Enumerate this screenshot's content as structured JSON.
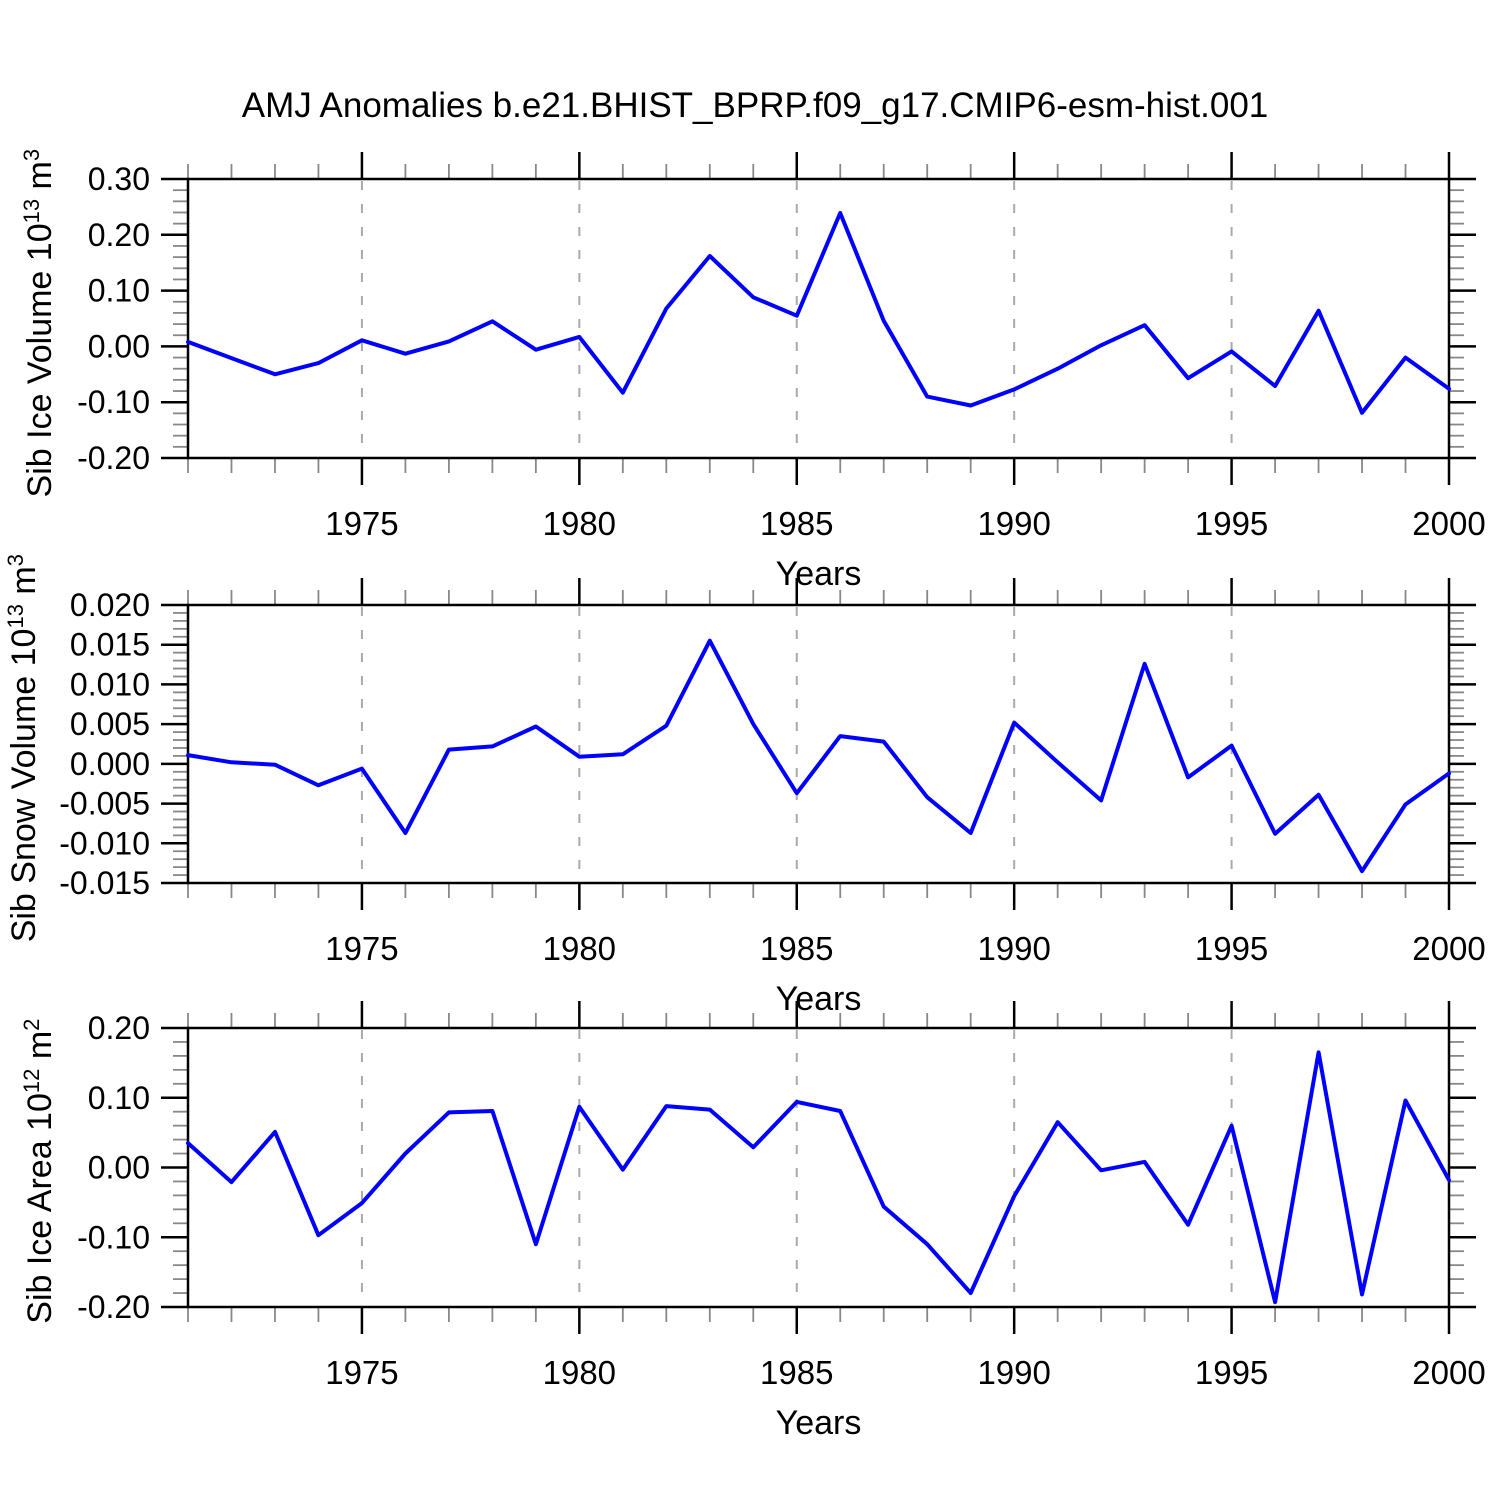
{
  "title": "AMJ Anomalies b.e21.BHIST_BPRP.f09_g17.CMIP6-esm-hist.001",
  "colors": {
    "line": "#0000ff",
    "grid": "#aaaaaa",
    "axis": "#000000",
    "minor_tick": "#888888",
    "text": "#000000"
  },
  "chart_data": [
    {
      "type": "line",
      "name": "sib-ice-volume",
      "ylabel": "Sib Ice Volume 10^13 m^3",
      "ylabel_parts": {
        "base1": "Sib Ice Volume 10",
        "sup1": "13",
        "base2": " m",
        "sup2": "3"
      },
      "xlabel": "Years",
      "x": [
        1971,
        1972,
        1973,
        1974,
        1975,
        1976,
        1977,
        1978,
        1979,
        1980,
        1981,
        1982,
        1983,
        1984,
        1985,
        1986,
        1987,
        1988,
        1989,
        1990,
        1991,
        1992,
        1993,
        1994,
        1995,
        1996,
        1997,
        1998,
        1999,
        2000
      ],
      "values": [
        0.008,
        -0.021,
        -0.05,
        -0.03,
        0.011,
        -0.013,
        0.009,
        0.045,
        -0.006,
        0.017,
        -0.083,
        0.068,
        0.162,
        0.088,
        0.055,
        0.239,
        0.046,
        -0.09,
        -0.106,
        -0.077,
        -0.04,
        0.002,
        0.038,
        -0.057,
        -0.009,
        -0.071,
        0.064,
        -0.119,
        -0.02,
        -0.076
      ],
      "ylim": [
        -0.2,
        0.3
      ],
      "xlim": [
        1971,
        2000
      ],
      "ytick_major": 0.1,
      "ytick_minor": 0.02,
      "yticks": [
        {
          "v": 0.3,
          "label": "0.30"
        },
        {
          "v": 0.2,
          "label": "0.20"
        },
        {
          "v": 0.1,
          "label": "0.10"
        },
        {
          "v": 0.0,
          "label": "0.00"
        },
        {
          "v": -0.1,
          "label": "-0.10"
        },
        {
          "v": -0.2,
          "label": "-0.20"
        }
      ],
      "xticks": [
        {
          "v": 1975,
          "label": "1975"
        },
        {
          "v": 1980,
          "label": "1980"
        },
        {
          "v": 1985,
          "label": "1985"
        },
        {
          "v": 1990,
          "label": "1990"
        },
        {
          "v": 1995,
          "label": "1995"
        },
        {
          "v": 2000,
          "label": "2000"
        }
      ],
      "xtick_minor": 1,
      "gridlines_x": [
        1975,
        1980,
        1985,
        1990,
        1995
      ],
      "legend": "none",
      "grid": "vertical-dashed"
    },
    {
      "type": "line",
      "name": "sib-snow-volume",
      "ylabel": "Sib Snow Volume 10^13 m^3",
      "ylabel_parts": {
        "base1": "Sib Snow Volume 10",
        "sup1": "13",
        "base2": " m",
        "sup2": "3"
      },
      "xlabel": "Years",
      "x": [
        1971,
        1972,
        1973,
        1974,
        1975,
        1976,
        1977,
        1978,
        1979,
        1980,
        1981,
        1982,
        1983,
        1984,
        1985,
        1986,
        1987,
        1988,
        1989,
        1990,
        1991,
        1992,
        1993,
        1994,
        1995,
        1996,
        1997,
        1998,
        1999,
        2000
      ],
      "values": [
        0.0011,
        0.0002,
        -0.0001,
        -0.0027,
        -0.0006,
        -0.0087,
        0.0018,
        0.0022,
        0.0047,
        0.0009,
        0.0012,
        0.0048,
        0.0155,
        0.005,
        -0.0037,
        0.0035,
        0.0028,
        -0.0042,
        -0.0087,
        0.0052,
        0.0002,
        -0.0046,
        0.0126,
        -0.0017,
        0.0023,
        -0.0088,
        -0.0039,
        -0.0135,
        -0.0051,
        -0.0012
      ],
      "ylim": [
        -0.015,
        0.02
      ],
      "xlim": [
        1971,
        2000
      ],
      "ytick_major": 0.005,
      "ytick_minor": 0.001,
      "yticks": [
        {
          "v": 0.02,
          "label": "0.020"
        },
        {
          "v": 0.015,
          "label": "0.015"
        },
        {
          "v": 0.01,
          "label": "0.010"
        },
        {
          "v": 0.005,
          "label": "0.005"
        },
        {
          "v": 0.0,
          "label": "0.000"
        },
        {
          "v": -0.005,
          "label": "-0.005"
        },
        {
          "v": -0.01,
          "label": "-0.010"
        },
        {
          "v": -0.015,
          "label": "-0.015"
        }
      ],
      "xticks": [
        {
          "v": 1975,
          "label": "1975"
        },
        {
          "v": 1980,
          "label": "1980"
        },
        {
          "v": 1985,
          "label": "1985"
        },
        {
          "v": 1990,
          "label": "1990"
        },
        {
          "v": 1995,
          "label": "1995"
        },
        {
          "v": 2000,
          "label": "2000"
        }
      ],
      "xtick_minor": 1,
      "gridlines_x": [
        1975,
        1980,
        1985,
        1990,
        1995
      ],
      "legend": "none",
      "grid": "vertical-dashed"
    },
    {
      "type": "line",
      "name": "sib-ice-area",
      "ylabel": "Sib Ice Area 10^12 m^2",
      "ylabel_parts": {
        "base1": "Sib Ice Area 10",
        "sup1": "12",
        "base2": " m",
        "sup2": "2"
      },
      "xlabel": "Years",
      "x": [
        1971,
        1972,
        1973,
        1974,
        1975,
        1976,
        1977,
        1978,
        1979,
        1980,
        1981,
        1982,
        1983,
        1984,
        1985,
        1986,
        1987,
        1988,
        1989,
        1990,
        1991,
        1992,
        1993,
        1994,
        1995,
        1996,
        1997,
        1998,
        1999,
        2000
      ],
      "values": [
        0.035,
        -0.021,
        0.051,
        -0.097,
        -0.051,
        0.02,
        0.079,
        0.081,
        -0.11,
        0.087,
        -0.003,
        0.088,
        0.083,
        0.029,
        0.094,
        0.081,
        -0.056,
        -0.11,
        -0.18,
        -0.041,
        0.065,
        -0.004,
        0.008,
        -0.082,
        0.06,
        -0.193,
        0.165,
        -0.182,
        0.096,
        -0.018
      ],
      "ylim": [
        -0.2,
        0.2
      ],
      "xlim": [
        1971,
        2000
      ],
      "ytick_major": 0.1,
      "ytick_minor": 0.02,
      "yticks": [
        {
          "v": 0.2,
          "label": "0.20"
        },
        {
          "v": 0.1,
          "label": "0.10"
        },
        {
          "v": 0.0,
          "label": "0.00"
        },
        {
          "v": -0.1,
          "label": "-0.10"
        },
        {
          "v": -0.2,
          "label": "-0.20"
        }
      ],
      "xticks": [
        {
          "v": 1975,
          "label": "1975"
        },
        {
          "v": 1980,
          "label": "1980"
        },
        {
          "v": 1985,
          "label": "1985"
        },
        {
          "v": 1990,
          "label": "1990"
        },
        {
          "v": 1995,
          "label": "1995"
        },
        {
          "v": 2000,
          "label": "2000"
        }
      ],
      "xtick_minor": 1,
      "gridlines_x": [
        1975,
        1980,
        1985,
        1990,
        1995
      ],
      "legend": "none",
      "grid": "vertical-dashed"
    }
  ]
}
